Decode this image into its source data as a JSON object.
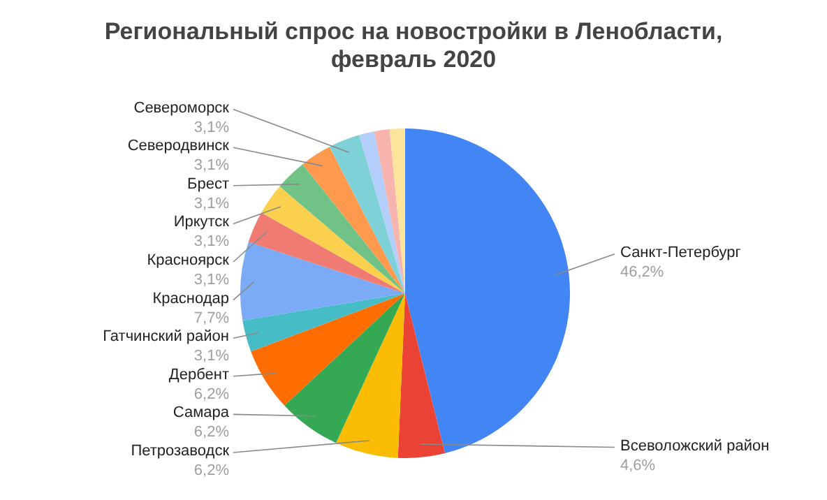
{
  "chart_data": {
    "type": "pie",
    "title": "Региональный спрос на новостройки в Ленобласти, февраль 2020",
    "categories": [
      "Санкт-Петербург",
      "Всеволожский район",
      "Петрозаводск",
      "Самара",
      "Дербент",
      "Гатчинский район",
      "Краснодар",
      "Красноярск",
      "Иркутск",
      "Брест",
      "Северодвинск",
      "Североморск",
      null,
      null,
      null
    ],
    "values": [
      46.2,
      4.6,
      6.2,
      6.2,
      6.2,
      3.1,
      7.7,
      3.1,
      3.1,
      3.1,
      3.1,
      3.1,
      1.5,
      1.5,
      1.5
    ],
    "value_labels": [
      "46,2%",
      "4,6%",
      "6,2%",
      "6,2%",
      "6,2%",
      "3,1%",
      "7,7%",
      "3,1%",
      "3,1%",
      "3,1%",
      "3,1%",
      "3,1%",
      null,
      null,
      null
    ],
    "colors": [
      "#4285f4",
      "#ea4335",
      "#fbbc04",
      "#34a853",
      "#ff6d01",
      "#46bdc6",
      "#7baaf7",
      "#f07b72",
      "#fcd04f",
      "#71c287",
      "#ff994d",
      "#7ed1d7",
      "#b3cefb",
      "#f7b4ae",
      "#fde49b"
    ]
  }
}
